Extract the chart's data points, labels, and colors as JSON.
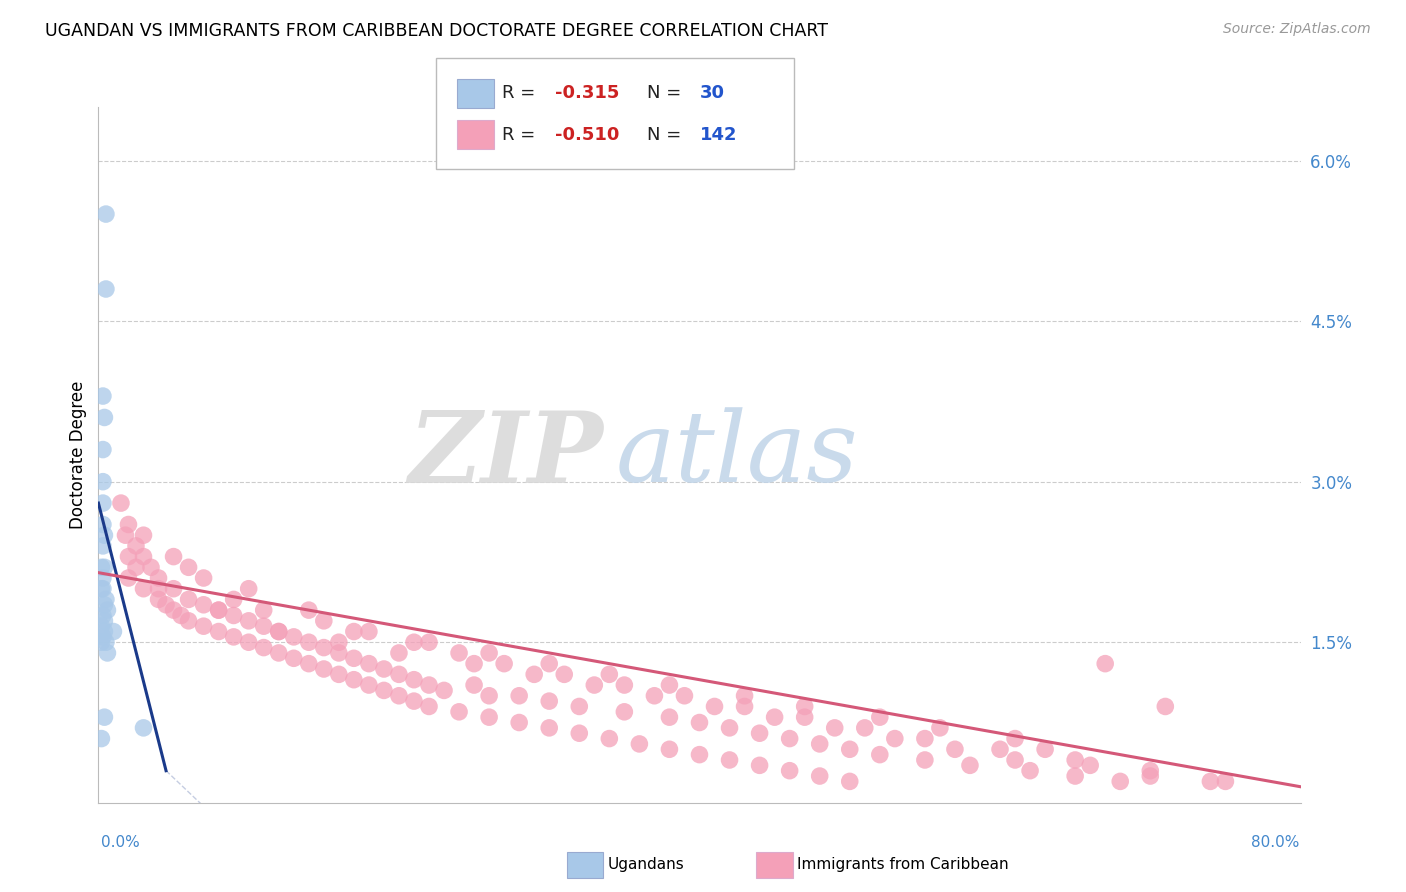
{
  "title": "UGANDAN VS IMMIGRANTS FROM CARIBBEAN DOCTORATE DEGREE CORRELATION CHART",
  "source": "Source: ZipAtlas.com",
  "ylabel": "Doctorate Degree",
  "ugandan_color": "#a8c8e8",
  "caribbean_color": "#f4a0b8",
  "ugandan_line_color": "#1a3a8a",
  "caribbean_line_color": "#d45878",
  "watermark_zip": "ZIP",
  "watermark_atlas": "atlas",
  "ugandan_points": [
    [
      0.5,
      5.5
    ],
    [
      0.5,
      4.8
    ],
    [
      0.3,
      3.8
    ],
    [
      0.4,
      3.6
    ],
    [
      0.3,
      3.3
    ],
    [
      0.3,
      3.0
    ],
    [
      0.3,
      2.8
    ],
    [
      0.3,
      2.6
    ],
    [
      0.4,
      2.5
    ],
    [
      0.3,
      2.4
    ],
    [
      0.2,
      2.2
    ],
    [
      0.4,
      2.2
    ],
    [
      0.3,
      2.1
    ],
    [
      0.2,
      2.0
    ],
    [
      0.3,
      2.0
    ],
    [
      0.5,
      1.9
    ],
    [
      0.4,
      1.85
    ],
    [
      0.6,
      1.8
    ],
    [
      0.3,
      1.75
    ],
    [
      0.4,
      1.7
    ],
    [
      0.2,
      1.65
    ],
    [
      0.4,
      1.6
    ],
    [
      1.0,
      1.6
    ],
    [
      0.3,
      1.55
    ],
    [
      0.2,
      1.5
    ],
    [
      0.5,
      1.5
    ],
    [
      0.6,
      1.4
    ],
    [
      0.4,
      0.8
    ],
    [
      3.0,
      0.7
    ],
    [
      0.2,
      0.6
    ]
  ],
  "caribbean_points": [
    [
      1.5,
      2.8
    ],
    [
      2.0,
      2.6
    ],
    [
      1.8,
      2.5
    ],
    [
      2.5,
      2.4
    ],
    [
      2.0,
      2.3
    ],
    [
      3.0,
      2.3
    ],
    [
      2.5,
      2.2
    ],
    [
      3.5,
      2.2
    ],
    [
      2.0,
      2.1
    ],
    [
      4.0,
      2.1
    ],
    [
      3.0,
      2.0
    ],
    [
      5.0,
      2.0
    ],
    [
      4.0,
      1.9
    ],
    [
      6.0,
      1.9
    ],
    [
      4.5,
      1.85
    ],
    [
      7.0,
      1.85
    ],
    [
      5.0,
      1.8
    ],
    [
      8.0,
      1.8
    ],
    [
      5.5,
      1.75
    ],
    [
      9.0,
      1.75
    ],
    [
      6.0,
      1.7
    ],
    [
      10.0,
      1.7
    ],
    [
      7.0,
      1.65
    ],
    [
      11.0,
      1.65
    ],
    [
      8.0,
      1.6
    ],
    [
      12.0,
      1.6
    ],
    [
      9.0,
      1.55
    ],
    [
      13.0,
      1.55
    ],
    [
      10.0,
      1.5
    ],
    [
      14.0,
      1.5
    ],
    [
      11.0,
      1.45
    ],
    [
      15.0,
      1.45
    ],
    [
      12.0,
      1.4
    ],
    [
      16.0,
      1.4
    ],
    [
      13.0,
      1.35
    ],
    [
      17.0,
      1.35
    ],
    [
      14.0,
      1.3
    ],
    [
      18.0,
      1.3
    ],
    [
      15.0,
      1.25
    ],
    [
      19.0,
      1.25
    ],
    [
      16.0,
      1.2
    ],
    [
      20.0,
      1.2
    ],
    [
      17.0,
      1.15
    ],
    [
      21.0,
      1.15
    ],
    [
      18.0,
      1.1
    ],
    [
      22.0,
      1.1
    ],
    [
      25.0,
      1.1
    ],
    [
      19.0,
      1.05
    ],
    [
      23.0,
      1.05
    ],
    [
      26.0,
      1.0
    ],
    [
      20.0,
      1.0
    ],
    [
      28.0,
      1.0
    ],
    [
      21.0,
      0.95
    ],
    [
      30.0,
      0.95
    ],
    [
      22.0,
      0.9
    ],
    [
      32.0,
      0.9
    ],
    [
      24.0,
      0.85
    ],
    [
      35.0,
      0.85
    ],
    [
      26.0,
      0.8
    ],
    [
      38.0,
      0.8
    ],
    [
      28.0,
      0.75
    ],
    [
      40.0,
      0.75
    ],
    [
      30.0,
      0.7
    ],
    [
      42.0,
      0.7
    ],
    [
      32.0,
      0.65
    ],
    [
      44.0,
      0.65
    ],
    [
      34.0,
      0.6
    ],
    [
      46.0,
      0.6
    ],
    [
      36.0,
      0.55
    ],
    [
      48.0,
      0.55
    ],
    [
      38.0,
      0.5
    ],
    [
      50.0,
      0.5
    ],
    [
      40.0,
      0.45
    ],
    [
      52.0,
      0.45
    ],
    [
      42.0,
      0.4
    ],
    [
      55.0,
      0.4
    ],
    [
      44.0,
      0.35
    ],
    [
      58.0,
      0.35
    ],
    [
      46.0,
      0.3
    ],
    [
      62.0,
      0.3
    ],
    [
      48.0,
      0.25
    ],
    [
      65.0,
      0.25
    ],
    [
      50.0,
      0.2
    ],
    [
      68.0,
      0.2
    ],
    [
      3.0,
      2.5
    ],
    [
      5.0,
      2.3
    ],
    [
      7.0,
      2.1
    ],
    [
      9.0,
      1.9
    ],
    [
      11.0,
      1.8
    ],
    [
      15.0,
      1.7
    ],
    [
      18.0,
      1.6
    ],
    [
      21.0,
      1.5
    ],
    [
      24.0,
      1.4
    ],
    [
      27.0,
      1.3
    ],
    [
      31.0,
      1.2
    ],
    [
      35.0,
      1.1
    ],
    [
      39.0,
      1.0
    ],
    [
      43.0,
      0.9
    ],
    [
      47.0,
      0.8
    ],
    [
      51.0,
      0.7
    ],
    [
      55.0,
      0.6
    ],
    [
      60.0,
      0.5
    ],
    [
      65.0,
      0.4
    ],
    [
      70.0,
      0.3
    ],
    [
      75.0,
      0.2
    ],
    [
      4.0,
      2.0
    ],
    [
      8.0,
      1.8
    ],
    [
      12.0,
      1.6
    ],
    [
      16.0,
      1.5
    ],
    [
      20.0,
      1.4
    ],
    [
      25.0,
      1.3
    ],
    [
      29.0,
      1.2
    ],
    [
      33.0,
      1.1
    ],
    [
      37.0,
      1.0
    ],
    [
      41.0,
      0.9
    ],
    [
      45.0,
      0.8
    ],
    [
      49.0,
      0.7
    ],
    [
      53.0,
      0.6
    ],
    [
      57.0,
      0.5
    ],
    [
      61.0,
      0.4
    ],
    [
      66.0,
      0.35
    ],
    [
      70.0,
      0.25
    ],
    [
      74.0,
      0.2
    ],
    [
      6.0,
      2.2
    ],
    [
      10.0,
      2.0
    ],
    [
      14.0,
      1.8
    ],
    [
      17.0,
      1.6
    ],
    [
      22.0,
      1.5
    ],
    [
      26.0,
      1.4
    ],
    [
      30.0,
      1.3
    ],
    [
      34.0,
      1.2
    ],
    [
      38.0,
      1.1
    ],
    [
      43.0,
      1.0
    ],
    [
      47.0,
      0.9
    ],
    [
      52.0,
      0.8
    ],
    [
      56.0,
      0.7
    ],
    [
      61.0,
      0.6
    ],
    [
      63.0,
      0.5
    ],
    [
      67.0,
      1.3
    ],
    [
      71.0,
      0.9
    ]
  ],
  "xlim": [
    0.0,
    80.0
  ],
  "ylim": [
    0.0,
    6.5
  ],
  "ytick_vals": [
    1.5,
    3.0,
    4.5,
    6.0
  ],
  "ytick_labels": [
    "1.5%",
    "3.0%",
    "4.5%",
    "6.0%"
  ],
  "ugandan_trend_x": [
    0.0,
    4.5
  ],
  "ugandan_trend_y": [
    2.8,
    0.3
  ],
  "caribbean_trend_x": [
    0.0,
    80.0
  ],
  "caribbean_trend_y": [
    2.15,
    0.15
  ]
}
